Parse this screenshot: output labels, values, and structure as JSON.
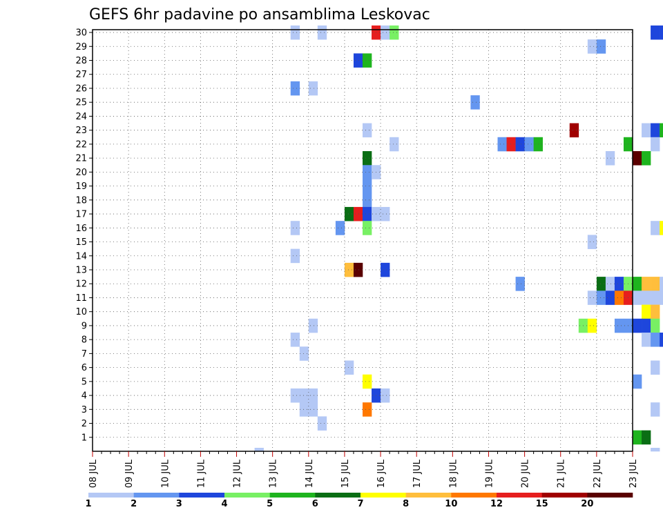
{
  "chart_data": {
    "type": "heatmap",
    "title": "GEFS 6hr padavine po ansamblima Leskovac",
    "xlabel": "",
    "ylabel": "",
    "x_tick_labels": [
      "08 JUL",
      "09 JUL",
      "10 JUL",
      "11 JUL",
      "12 JUL",
      "13 JUL",
      "14 JUL",
      "15 JUL",
      "16 JUL",
      "17 JUL",
      "18 JUL",
      "19 JUL",
      "20 JUL",
      "21 JUL",
      "22 JUL",
      "23 JUL"
    ],
    "y_tick_labels": [
      "1",
      "2",
      "3",
      "4",
      "5",
      "6",
      "7",
      "8",
      "9",
      "10",
      "11",
      "12",
      "13",
      "14",
      "15",
      "16",
      "17",
      "18",
      "19",
      "20",
      "21",
      "22",
      "23",
      "24",
      "25",
      "26",
      "27",
      "28",
      "29",
      "30"
    ],
    "x_unit": "6-hour step (4 per day), starting 08 JUL 00Z",
    "ylim": [
      0,
      30
    ],
    "grid": true,
    "legend_position": "bottom",
    "colorbar": {
      "labels": [
        "1",
        "2",
        "3",
        "4",
        "5",
        "6",
        "7",
        "8",
        "10",
        "12",
        "15",
        "20"
      ],
      "colors": [
        "#b4c8f5",
        "#6496f0",
        "#1e46dc",
        "#78f064",
        "#1eb41e",
        "#0a6e14",
        "#ffff00",
        "#ffbe3c",
        "#ff7800",
        "#e61e1e",
        "#a00000",
        "#5a0000"
      ]
    },
    "cells": [
      [
        30,
        22,
        0
      ],
      [
        30,
        25,
        0
      ],
      [
        30,
        31,
        9
      ],
      [
        30,
        32,
        0
      ],
      [
        30,
        33,
        3
      ],
      [
        30,
        62,
        2
      ],
      [
        30,
        63,
        2
      ],
      [
        30,
        64,
        0
      ],
      [
        30,
        65,
        2
      ],
      [
        30,
        66,
        3
      ],
      [
        30,
        77,
        3
      ],
      [
        30,
        83,
        0
      ],
      [
        30,
        84,
        2
      ],
      [
        30,
        86,
        4
      ],
      [
        30,
        87,
        5
      ],
      [
        30,
        90,
        2
      ],
      [
        30,
        91,
        2
      ],
      [
        30,
        92,
        3
      ],
      [
        29,
        55,
        0
      ],
      [
        29,
        56,
        1
      ],
      [
        29,
        76,
        1
      ],
      [
        29,
        77,
        0
      ],
      [
        29,
        82,
        5
      ],
      [
        29,
        83,
        1
      ],
      [
        28,
        29,
        2
      ],
      [
        28,
        30,
        4
      ],
      [
        28,
        94,
        0
      ],
      [
        26,
        22,
        1
      ],
      [
        26,
        24,
        0
      ],
      [
        26,
        71,
        2
      ],
      [
        26,
        72,
        1
      ],
      [
        26,
        76,
        3
      ],
      [
        26,
        78,
        0
      ],
      [
        26,
        81,
        0
      ],
      [
        26,
        82,
        0
      ],
      [
        26,
        92,
        0
      ],
      [
        26,
        93,
        1
      ],
      [
        26,
        94,
        4
      ],
      [
        25,
        42,
        1
      ],
      [
        25,
        65,
        1
      ],
      [
        25,
        66,
        0
      ],
      [
        25,
        67,
        0
      ],
      [
        25,
        70,
        0
      ],
      [
        25,
        71,
        0
      ],
      [
        25,
        72,
        0
      ],
      [
        25,
        73,
        10
      ],
      [
        25,
        74,
        10
      ],
      [
        25,
        75,
        0
      ],
      [
        25,
        77,
        0
      ],
      [
        25,
        78,
        0
      ],
      [
        25,
        83,
        1
      ],
      [
        25,
        84,
        5
      ],
      [
        25,
        92,
        0
      ],
      [
        25,
        98,
        1
      ],
      [
        24,
        68,
        4
      ],
      [
        24,
        69,
        4
      ],
      [
        24,
        70,
        2
      ],
      [
        24,
        71,
        1
      ],
      [
        24,
        72,
        5
      ],
      [
        23,
        30,
        0
      ],
      [
        23,
        53,
        10
      ],
      [
        23,
        61,
        0
      ],
      [
        23,
        62,
        2
      ],
      [
        23,
        63,
        4
      ],
      [
        23,
        67,
        7
      ],
      [
        23,
        68,
        4
      ],
      [
        23,
        70,
        3
      ],
      [
        23,
        72,
        4
      ],
      [
        23,
        73,
        2
      ],
      [
        23,
        74,
        1
      ],
      [
        23,
        77,
        0
      ],
      [
        23,
        82,
        2
      ],
      [
        23,
        83,
        1
      ],
      [
        23,
        84,
        0
      ],
      [
        23,
        87,
        0
      ],
      [
        23,
        92,
        4
      ],
      [
        23,
        93,
        2
      ],
      [
        23,
        94,
        2
      ],
      [
        23,
        97,
        8
      ],
      [
        23,
        98,
        0
      ],
      [
        22,
        33,
        0
      ],
      [
        22,
        45,
        1
      ],
      [
        22,
        46,
        9
      ],
      [
        22,
        47,
        2
      ],
      [
        22,
        48,
        1
      ],
      [
        22,
        49,
        4
      ],
      [
        22,
        59,
        4
      ],
      [
        22,
        62,
        0
      ],
      [
        22,
        67,
        10
      ],
      [
        22,
        68,
        9
      ],
      [
        22,
        69,
        0
      ],
      [
        21,
        30,
        5
      ],
      [
        21,
        57,
        0
      ],
      [
        21,
        60,
        11
      ],
      [
        21,
        61,
        4
      ],
      [
        21,
        64,
        1
      ],
      [
        21,
        65,
        0
      ],
      [
        21,
        71,
        0
      ],
      [
        21,
        72,
        1
      ],
      [
        21,
        73,
        1
      ],
      [
        21,
        78,
        4
      ],
      [
        21,
        79,
        5
      ],
      [
        21,
        82,
        2
      ],
      [
        21,
        83,
        8
      ],
      [
        21,
        89,
        1
      ],
      [
        21,
        90,
        2
      ],
      [
        21,
        92,
        0
      ],
      [
        21,
        93,
        0
      ],
      [
        21,
        94,
        0
      ],
      [
        20,
        30,
        1
      ],
      [
        20,
        31,
        0
      ],
      [
        20,
        74,
        1
      ],
      [
        19,
        30,
        1
      ],
      [
        18,
        30,
        1
      ],
      [
        18,
        66,
        0
      ],
      [
        18,
        90,
        1
      ],
      [
        17,
        28,
        5
      ],
      [
        17,
        29,
        9
      ],
      [
        17,
        30,
        2
      ],
      [
        17,
        31,
        0
      ],
      [
        17,
        32,
        0
      ],
      [
        17,
        70,
        0
      ],
      [
        17,
        74,
        2
      ],
      [
        17,
        75,
        4
      ],
      [
        17,
        76,
        7
      ],
      [
        17,
        77,
        3
      ],
      [
        17,
        78,
        4
      ],
      [
        17,
        79,
        8
      ],
      [
        17,
        81,
        2
      ],
      [
        17,
        82,
        6
      ],
      [
        17,
        83,
        1
      ],
      [
        17,
        84,
        0
      ],
      [
        17,
        85,
        1
      ],
      [
        17,
        88,
        1
      ],
      [
        17,
        89,
        2
      ],
      [
        17,
        97,
        3
      ],
      [
        17,
        98,
        2
      ],
      [
        16,
        22,
        0
      ],
      [
        16,
        27,
        1
      ],
      [
        16,
        30,
        3
      ],
      [
        16,
        62,
        0
      ],
      [
        16,
        63,
        6
      ],
      [
        16,
        64,
        0
      ],
      [
        16,
        97,
        0
      ],
      [
        15,
        55,
        0
      ],
      [
        15,
        66,
        1
      ],
      [
        15,
        93,
        0
      ],
      [
        15,
        97,
        1
      ],
      [
        15,
        98,
        5
      ],
      [
        15,
        99,
        0
      ],
      [
        14,
        22,
        0
      ],
      [
        14,
        97,
        0
      ],
      [
        14,
        98,
        5
      ],
      [
        13,
        28,
        7
      ],
      [
        13,
        29,
        11
      ],
      [
        13,
        32,
        2
      ],
      [
        13,
        75,
        0
      ],
      [
        13,
        76,
        0
      ],
      [
        12,
        47,
        1
      ],
      [
        12,
        56,
        5
      ],
      [
        12,
        57,
        0
      ],
      [
        12,
        58,
        2
      ],
      [
        12,
        59,
        3
      ],
      [
        12,
        60,
        4
      ],
      [
        12,
        61,
        7
      ],
      [
        12,
        62,
        7
      ],
      [
        12,
        63,
        0
      ],
      [
        12,
        64,
        5
      ],
      [
        12,
        65,
        0
      ],
      [
        12,
        70,
        0
      ],
      [
        12,
        77,
        1
      ],
      [
        12,
        78,
        0
      ],
      [
        12,
        81,
        9
      ],
      [
        12,
        82,
        4
      ],
      [
        12,
        83,
        1
      ],
      [
        12,
        87,
        2
      ],
      [
        12,
        88,
        0
      ],
      [
        12,
        92,
        7
      ],
      [
        12,
        93,
        1
      ],
      [
        11,
        55,
        0
      ],
      [
        11,
        56,
        1
      ],
      [
        11,
        57,
        2
      ],
      [
        11,
        58,
        8
      ],
      [
        11,
        59,
        9
      ],
      [
        11,
        60,
        0
      ],
      [
        11,
        61,
        0
      ],
      [
        11,
        62,
        0
      ],
      [
        11,
        63,
        0
      ],
      [
        11,
        64,
        4
      ],
      [
        11,
        65,
        4
      ],
      [
        11,
        66,
        4
      ],
      [
        11,
        69,
        5
      ],
      [
        11,
        70,
        3
      ],
      [
        11,
        71,
        0
      ],
      [
        11,
        77,
        1
      ],
      [
        11,
        79,
        0
      ],
      [
        11,
        86,
        1
      ],
      [
        11,
        87,
        4
      ],
      [
        11,
        88,
        0
      ],
      [
        11,
        92,
        4
      ],
      [
        10,
        61,
        6
      ],
      [
        10,
        62,
        7
      ],
      [
        10,
        66,
        2
      ],
      [
        10,
        70,
        0
      ],
      [
        10,
        71,
        0
      ],
      [
        10,
        97,
        4
      ],
      [
        10,
        98,
        1
      ],
      [
        10,
        99,
        6
      ],
      [
        9,
        24,
        0
      ],
      [
        9,
        54,
        3
      ],
      [
        9,
        55,
        6
      ],
      [
        9,
        58,
        1
      ],
      [
        9,
        59,
        1
      ],
      [
        9,
        60,
        2
      ],
      [
        9,
        61,
        2
      ],
      [
        9,
        62,
        3
      ],
      [
        9,
        70,
        3
      ],
      [
        9,
        71,
        3
      ],
      [
        9,
        76,
        3
      ],
      [
        9,
        77,
        3
      ],
      [
        9,
        81,
        3
      ],
      [
        8,
        22,
        0
      ],
      [
        8,
        61,
        0
      ],
      [
        8,
        62,
        1
      ],
      [
        8,
        63,
        2
      ],
      [
        8,
        64,
        8
      ],
      [
        8,
        65,
        11
      ],
      [
        8,
        70,
        1
      ],
      [
        8,
        71,
        3
      ],
      [
        8,
        76,
        0
      ],
      [
        8,
        80,
        3
      ],
      [
        8,
        94,
        2
      ],
      [
        7,
        23,
        0
      ],
      [
        6,
        28,
        0
      ],
      [
        6,
        62,
        0
      ],
      [
        6,
        66,
        5
      ],
      [
        6,
        67,
        4
      ],
      [
        6,
        70,
        0
      ],
      [
        6,
        71,
        9
      ],
      [
        6,
        73,
        0
      ],
      [
        6,
        74,
        1
      ],
      [
        6,
        75,
        2
      ],
      [
        6,
        76,
        0
      ],
      [
        6,
        81,
        2
      ],
      [
        6,
        82,
        2
      ],
      [
        6,
        83,
        2
      ],
      [
        6,
        85,
        3
      ],
      [
        6,
        86,
        2
      ],
      [
        6,
        88,
        0
      ],
      [
        6,
        89,
        1
      ],
      [
        6,
        90,
        0
      ],
      [
        6,
        91,
        1
      ],
      [
        6,
        92,
        4
      ],
      [
        6,
        94,
        5
      ],
      [
        6,
        97,
        8
      ],
      [
        6,
        98,
        0
      ],
      [
        6,
        99,
        0
      ],
      [
        5,
        30,
        6
      ],
      [
        5,
        60,
        1
      ],
      [
        5,
        68,
        0
      ],
      [
        5,
        69,
        2
      ],
      [
        5,
        70,
        4
      ],
      [
        4,
        22,
        0
      ],
      [
        4,
        23,
        0
      ],
      [
        4,
        24,
        0
      ],
      [
        4,
        31,
        2
      ],
      [
        4,
        32,
        0
      ],
      [
        4,
        70,
        0
      ],
      [
        4,
        73,
        1
      ],
      [
        4,
        74,
        1
      ],
      [
        4,
        85,
        5
      ],
      [
        4,
        86,
        8
      ],
      [
        4,
        88,
        1
      ],
      [
        4,
        90,
        0
      ],
      [
        3,
        23,
        0
      ],
      [
        3,
        24,
        0
      ],
      [
        3,
        30,
        8
      ],
      [
        3,
        62,
        0
      ],
      [
        2,
        25,
        0
      ],
      [
        2,
        66,
        0
      ],
      [
        2,
        67,
        1
      ],
      [
        2,
        69,
        0
      ],
      [
        2,
        70,
        3
      ],
      [
        2,
        94,
        0
      ],
      [
        1,
        60,
        4
      ],
      [
        1,
        61,
        5
      ],
      [
        1,
        67,
        0
      ],
      [
        1,
        73,
        1
      ],
      [
        1,
        74,
        5
      ],
      [
        1,
        79,
        8
      ],
      [
        1,
        83,
        0
      ],
      [
        1,
        84,
        8
      ],
      [
        1,
        85,
        2
      ],
      [
        1,
        88,
        4
      ],
      [
        1,
        89,
        4
      ],
      [
        1,
        97,
        7
      ],
      [
        1,
        98,
        0
      ],
      [
        0,
        18,
        0
      ],
      [
        0,
        62,
        0
      ],
      [
        0,
        65,
        0
      ],
      [
        0,
        66,
        0
      ],
      [
        0,
        70,
        7
      ],
      [
        0,
        72,
        2
      ],
      [
        0,
        73,
        0
      ],
      [
        0,
        77,
        1
      ],
      [
        0,
        85,
        1
      ]
    ]
  }
}
